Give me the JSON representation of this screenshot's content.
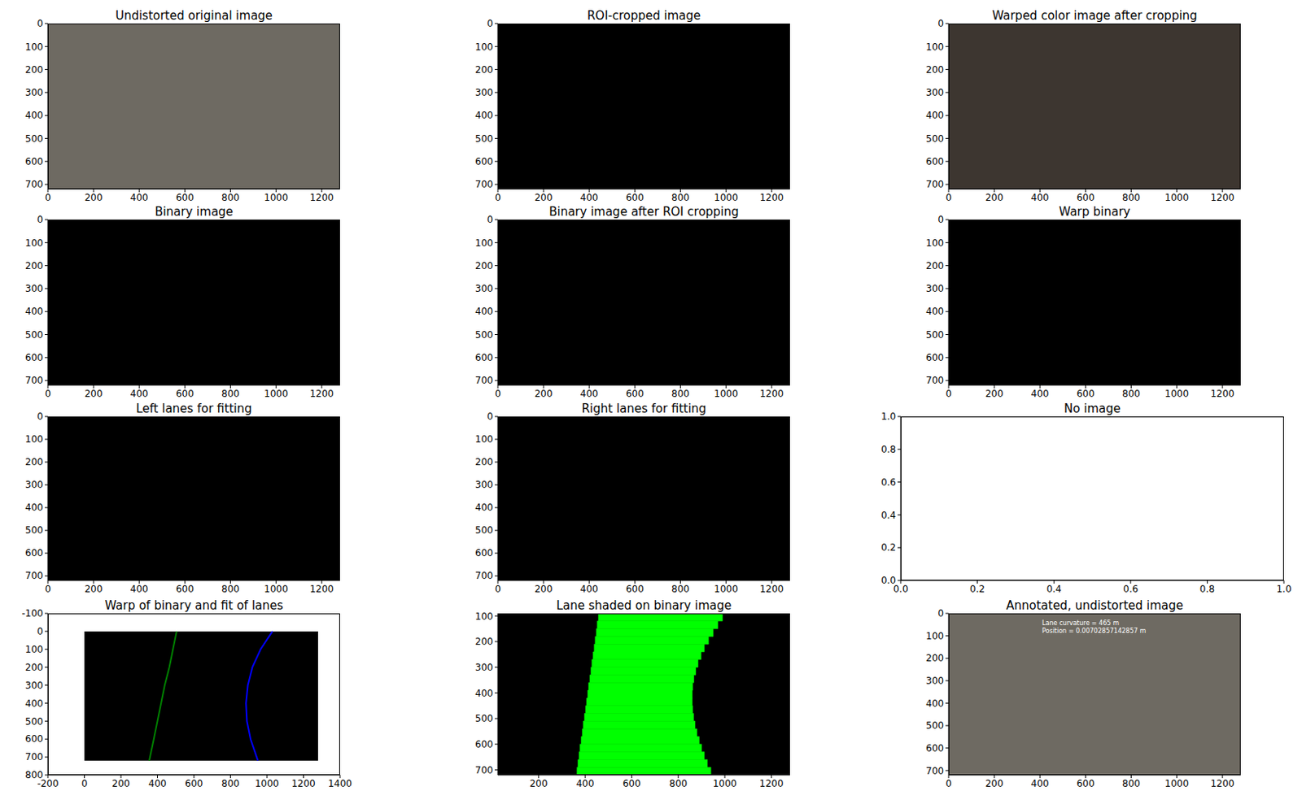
{
  "chart_data": [
    {
      "type": "image",
      "title": "Undistorted original image",
      "image_size": [
        1280,
        720
      ],
      "color": "#6e6a62",
      "xlim": [
        0,
        1280
      ],
      "ylim": [
        720,
        0
      ],
      "xticks": [
        0,
        200,
        400,
        600,
        800,
        1000,
        1200
      ],
      "yticks": [
        0,
        100,
        200,
        300,
        400,
        500,
        600,
        700
      ]
    },
    {
      "type": "image",
      "title": "ROI-cropped image",
      "image_size": [
        1280,
        720
      ],
      "color": "#000000",
      "xlim": [
        0,
        1280
      ],
      "ylim": [
        720,
        0
      ],
      "xticks": [
        0,
        200,
        400,
        600,
        800,
        1000,
        1200
      ],
      "yticks": [
        0,
        100,
        200,
        300,
        400,
        500,
        600,
        700
      ]
    },
    {
      "type": "image",
      "title": "Warped color image after cropping",
      "image_size": [
        1280,
        720
      ],
      "color": "#3d3630",
      "xlim": [
        0,
        1280
      ],
      "ylim": [
        720,
        0
      ],
      "xticks": [
        0,
        200,
        400,
        600,
        800,
        1000,
        1200
      ],
      "yticks": [
        0,
        100,
        200,
        300,
        400,
        500,
        600,
        700
      ]
    },
    {
      "type": "image",
      "title": "Binary image",
      "image_size": [
        1280,
        720
      ],
      "color": "#000000",
      "xlim": [
        0,
        1280
      ],
      "ylim": [
        720,
        0
      ],
      "xticks": [
        0,
        200,
        400,
        600,
        800,
        1000,
        1200
      ],
      "yticks": [
        0,
        100,
        200,
        300,
        400,
        500,
        600,
        700
      ]
    },
    {
      "type": "image",
      "title": "Binary image after ROI cropping",
      "image_size": [
        1280,
        720
      ],
      "color": "#000000",
      "xlim": [
        0,
        1280
      ],
      "ylim": [
        720,
        0
      ],
      "xticks": [
        0,
        200,
        400,
        600,
        800,
        1000,
        1200
      ],
      "yticks": [
        0,
        100,
        200,
        300,
        400,
        500,
        600,
        700
      ]
    },
    {
      "type": "image",
      "title": "Warp binary",
      "image_size": [
        1280,
        720
      ],
      "color": "#000000",
      "xlim": [
        0,
        1280
      ],
      "ylim": [
        720,
        0
      ],
      "xticks": [
        0,
        200,
        400,
        600,
        800,
        1000,
        1200
      ],
      "yticks": [
        0,
        100,
        200,
        300,
        400,
        500,
        600,
        700
      ]
    },
    {
      "type": "image",
      "title": "Left lanes for fitting",
      "image_size": [
        1280,
        720
      ],
      "color": "#000000",
      "xlim": [
        0,
        1280
      ],
      "ylim": [
        720,
        0
      ],
      "xticks": [
        0,
        200,
        400,
        600,
        800,
        1000,
        1200
      ],
      "yticks": [
        0,
        100,
        200,
        300,
        400,
        500,
        600,
        700
      ]
    },
    {
      "type": "image",
      "title": "Right lanes for fitting",
      "image_size": [
        1280,
        720
      ],
      "color": "#000000",
      "xlim": [
        0,
        1280
      ],
      "ylim": [
        720,
        0
      ],
      "xticks": [
        0,
        200,
        400,
        600,
        800,
        1000,
        1200
      ],
      "yticks": [
        0,
        100,
        200,
        300,
        400,
        500,
        600,
        700
      ]
    },
    {
      "type": "empty",
      "title": "No image",
      "xlim": [
        0,
        1
      ],
      "ylim": [
        0,
        1
      ],
      "xticks": [
        {
          "value": 0,
          "label": "0.0"
        },
        {
          "value": 0.2,
          "label": "0.2"
        },
        {
          "value": 0.4,
          "label": "0.4"
        },
        {
          "value": 0.6,
          "label": "0.6"
        },
        {
          "value": 0.8,
          "label": "0.8"
        },
        {
          "value": 1,
          "label": "1.0"
        }
      ],
      "yticks": [
        {
          "value": 0,
          "label": "0.0"
        },
        {
          "value": 0.2,
          "label": "0.2"
        },
        {
          "value": 0.4,
          "label": "0.4"
        },
        {
          "value": 0.6,
          "label": "0.6"
        },
        {
          "value": 0.8,
          "label": "0.8"
        },
        {
          "value": 1,
          "label": "1.0"
        }
      ]
    },
    {
      "type": "line",
      "title": "Warp of binary and fit of lanes",
      "image_size": [
        1280,
        720
      ],
      "color": "#000000",
      "xlim": [
        -200,
        1400
      ],
      "ylim": [
        800,
        -100
      ],
      "xticks": [
        -200,
        0,
        200,
        400,
        600,
        800,
        1000,
        1200,
        1400
      ],
      "yticks": [
        -100,
        0,
        100,
        200,
        300,
        400,
        500,
        600,
        700,
        800
      ],
      "series": [
        {
          "color": "#008000",
          "x": [
            505,
            485,
            465,
            440,
            420,
            400,
            380,
            355
          ],
          "y": [
            0,
            100,
            200,
            300,
            400,
            500,
            600,
            720
          ]
        },
        {
          "color": "#0000ff",
          "x": [
            1030,
            965,
            920,
            895,
            885,
            890,
            910,
            950
          ],
          "y": [
            0,
            100,
            200,
            300,
            400,
            500,
            600,
            720
          ]
        }
      ]
    },
    {
      "type": "area",
      "title": "Lane shaded on binary image",
      "image_size": [
        1280,
        720
      ],
      "color": "#000000",
      "xlim": [
        25,
        1280
      ],
      "ylim": [
        720,
        90
      ],
      "xticks": [
        200,
        400,
        600,
        800,
        1000,
        1200
      ],
      "yticks": [
        100,
        200,
        300,
        400,
        500,
        600,
        700
      ],
      "series": [
        {
          "color": "#00ff00",
          "y": [
            90,
            120,
            150,
            180,
            210,
            240,
            270,
            300,
            330,
            360,
            390,
            420,
            450,
            480,
            510,
            540,
            570,
            600,
            630,
            660,
            690,
            720
          ],
          "x_left": [
            457,
            452,
            448,
            443,
            439,
            434,
            429,
            425,
            420,
            415,
            411,
            406,
            402,
            397,
            392,
            388,
            383,
            378,
            374,
            369,
            365,
            360
          ],
          "x_right": [
            990,
            970,
            950,
            930,
            912,
            898,
            885,
            875,
            867,
            862,
            860,
            860,
            862,
            866,
            872,
            880,
            890,
            900,
            912,
            925,
            940,
            955
          ]
        }
      ]
    },
    {
      "type": "image",
      "title": "Annotated, undistorted image",
      "image_size": [
        1280,
        720
      ],
      "color": "#6e6a62",
      "xlim": [
        0,
        1280
      ],
      "ylim": [
        720,
        0
      ],
      "xticks": [
        0,
        200,
        400,
        600,
        800,
        1000,
        1200
      ],
      "yticks": [
        0,
        100,
        200,
        300,
        400,
        500,
        600,
        700
      ],
      "annotations": [
        "Lane curvature = 465 m",
        "Position = 0.00702857142857 m"
      ]
    }
  ]
}
